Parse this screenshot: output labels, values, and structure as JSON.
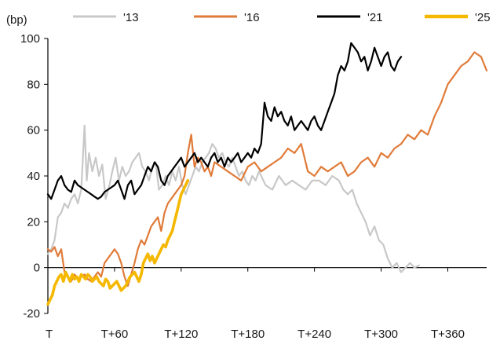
{
  "chart_data": {
    "type": "line",
    "unit_label": "(bp)",
    "title": "",
    "xlabel": "",
    "ylabel": "",
    "xlim": [
      0,
      395
    ],
    "ylim": [
      -20,
      100
    ],
    "yticks": [
      -20,
      0,
      20,
      40,
      60,
      80,
      100
    ],
    "xticks": [
      {
        "x": 0,
        "label": "T"
      },
      {
        "x": 60,
        "label": "T+60"
      },
      {
        "x": 120,
        "label": "T+120"
      },
      {
        "x": 180,
        "label": "T+180"
      },
      {
        "x": 240,
        "label": "T+240"
      },
      {
        "x": 300,
        "label": "T+300"
      },
      {
        "x": 360,
        "label": "T+360"
      }
    ],
    "grid": false,
    "legend_position": "top",
    "series": [
      {
        "name": "'13",
        "color": "#c8c8c8",
        "x": [
          0,
          3,
          6,
          9,
          12,
          15,
          18,
          21,
          24,
          27,
          30,
          33,
          35,
          37,
          40,
          43,
          46,
          49,
          52,
          55,
          58,
          61,
          64,
          67,
          70,
          73,
          76,
          79,
          82,
          85,
          88,
          91,
          94,
          97,
          100,
          103,
          106,
          109,
          112,
          115,
          118,
          121,
          124,
          127,
          130,
          133,
          136,
          139,
          142,
          145,
          148,
          151,
          154,
          157,
          160,
          163,
          166,
          169,
          172,
          175,
          178,
          181,
          184,
          187,
          190,
          196,
          202,
          208,
          214,
          220,
          226,
          232,
          238,
          244,
          250,
          256,
          262,
          266,
          270,
          274,
          278,
          282,
          286,
          290,
          294,
          298,
          302,
          306,
          310,
          314,
          318,
          322,
          326,
          330,
          334
        ],
        "values": [
          6,
          8,
          12,
          22,
          24,
          28,
          26,
          30,
          32,
          28,
          34,
          62,
          38,
          50,
          42,
          48,
          40,
          45,
          30,
          35,
          42,
          48,
          38,
          44,
          40,
          42,
          46,
          48,
          50,
          44,
          42,
          38,
          44,
          46,
          34,
          36,
          40,
          36,
          42,
          38,
          44,
          36,
          32,
          36,
          40,
          44,
          42,
          46,
          48,
          50,
          54,
          52,
          48,
          50,
          46,
          44,
          48,
          44,
          40,
          42,
          38,
          36,
          40,
          38,
          42,
          36,
          34,
          40,
          36,
          38,
          36,
          34,
          38,
          38,
          36,
          40,
          38,
          34,
          32,
          34,
          28,
          24,
          20,
          14,
          18,
          12,
          10,
          4,
          0,
          2,
          -2,
          0,
          2,
          0,
          1
        ]
      },
      {
        "name": "'16",
        "color": "#e07b39",
        "x": [
          0,
          3,
          6,
          9,
          12,
          15,
          18,
          21,
          24,
          27,
          30,
          33,
          36,
          39,
          42,
          45,
          48,
          51,
          54,
          57,
          60,
          63,
          66,
          69,
          72,
          75,
          78,
          81,
          84,
          87,
          90,
          93,
          96,
          99,
          102,
          105,
          108,
          111,
          114,
          117,
          120,
          123,
          126,
          129,
          132,
          135,
          138,
          141,
          144,
          147,
          150,
          156,
          162,
          168,
          174,
          180,
          186,
          192,
          198,
          204,
          210,
          216,
          222,
          228,
          234,
          240,
          246,
          252,
          258,
          264,
          270,
          276,
          282,
          288,
          294,
          300,
          306,
          312,
          318,
          324,
          330,
          336,
          342,
          348,
          354,
          360,
          366,
          372,
          378,
          384,
          390,
          395
        ],
        "values": [
          8,
          7,
          9,
          5,
          8,
          -2,
          -4,
          -6,
          -3,
          -5,
          -4,
          -3,
          -5,
          -6,
          -4,
          -2,
          -4,
          2,
          4,
          6,
          8,
          6,
          2,
          -4,
          -8,
          -3,
          2,
          8,
          12,
          10,
          14,
          18,
          20,
          22,
          16,
          24,
          28,
          30,
          32,
          34,
          36,
          40,
          50,
          58,
          44,
          48,
          46,
          42,
          44,
          40,
          46,
          44,
          42,
          40,
          38,
          44,
          46,
          42,
          44,
          46,
          48,
          52,
          50,
          54,
          42,
          40,
          44,
          42,
          44,
          46,
          40,
          42,
          46,
          48,
          44,
          50,
          48,
          52,
          54,
          58,
          56,
          60,
          58,
          66,
          72,
          80,
          84,
          88,
          90,
          94,
          92,
          86
        ]
      },
      {
        "name": "'21",
        "color": "#000000",
        "x": [
          0,
          3,
          6,
          9,
          12,
          15,
          18,
          21,
          24,
          27,
          30,
          33,
          36,
          39,
          42,
          45,
          48,
          51,
          54,
          57,
          60,
          63,
          66,
          69,
          72,
          75,
          78,
          81,
          84,
          87,
          90,
          93,
          96,
          99,
          102,
          105,
          108,
          111,
          114,
          117,
          120,
          123,
          126,
          129,
          132,
          135,
          138,
          141,
          144,
          147,
          150,
          153,
          156,
          159,
          162,
          165,
          168,
          171,
          174,
          177,
          180,
          183,
          186,
          189,
          192,
          195,
          198,
          201,
          204,
          207,
          210,
          213,
          216,
          219,
          222,
          225,
          228,
          231,
          234,
          237,
          240,
          243,
          246,
          249,
          252,
          255,
          258,
          261,
          264,
          267,
          270,
          273,
          276,
          279,
          282,
          285,
          288,
          291,
          294,
          297,
          300,
          303,
          306,
          309,
          312,
          315,
          318
        ],
        "values": [
          32,
          30,
          34,
          38,
          40,
          36,
          34,
          33,
          38,
          36,
          35,
          34,
          33,
          32,
          31,
          30,
          31,
          33,
          34,
          35,
          36,
          38,
          34,
          30,
          36,
          38,
          32,
          34,
          36,
          40,
          44,
          42,
          46,
          44,
          38,
          36,
          40,
          42,
          44,
          46,
          48,
          44,
          46,
          48,
          50,
          46,
          48,
          46,
          44,
          48,
          50,
          46,
          48,
          44,
          48,
          46,
          48,
          50,
          46,
          48,
          50,
          48,
          52,
          50,
          54,
          72,
          66,
          64,
          70,
          66,
          68,
          64,
          62,
          66,
          60,
          62,
          64,
          62,
          60,
          64,
          66,
          62,
          60,
          64,
          68,
          72,
          76,
          84,
          88,
          86,
          90,
          98,
          96,
          94,
          90,
          92,
          86,
          90,
          96,
          92,
          88,
          92,
          94,
          88,
          86,
          90,
          92
        ]
      },
      {
        "name": "'25",
        "color": "#f5b800",
        "x": [
          0,
          2,
          4,
          6,
          8,
          10,
          12,
          14,
          16,
          18,
          20,
          22,
          24,
          26,
          28,
          30,
          32,
          34,
          36,
          38,
          40,
          42,
          44,
          46,
          48,
          50,
          52,
          54,
          56,
          58,
          60,
          62,
          64,
          66,
          68,
          70,
          72,
          74,
          76,
          78,
          80,
          82,
          84,
          86,
          88,
          90,
          92,
          94,
          96,
          98,
          100,
          102,
          104,
          106,
          108,
          110,
          112,
          114,
          116,
          118,
          120,
          122,
          124,
          126
        ],
        "values": [
          -16,
          -14,
          -12,
          -8,
          -6,
          -4,
          -3,
          -6,
          -2,
          -4,
          -6,
          -3,
          -5,
          -4,
          -6,
          -3,
          -4,
          -5,
          -3,
          -4,
          -6,
          -5,
          -4,
          -6,
          -7,
          -8,
          -5,
          -6,
          -9,
          -8,
          -7,
          -6,
          -8,
          -10,
          -9,
          -8,
          -6,
          -4,
          -3,
          -2,
          -4,
          -6,
          -3,
          2,
          4,
          6,
          3,
          5,
          2,
          4,
          6,
          8,
          10,
          9,
          12,
          14,
          16,
          20,
          24,
          28,
          32,
          34,
          36,
          38
        ]
      }
    ]
  }
}
